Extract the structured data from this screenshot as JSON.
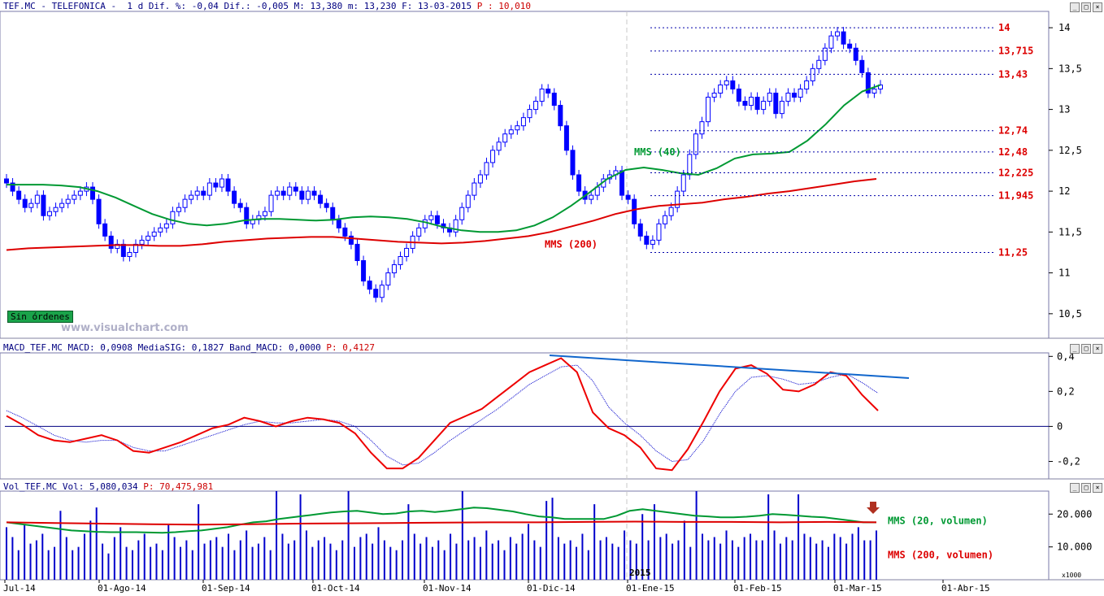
{
  "header": {
    "price": "TEF.MC - TELEFONICA -  1 d Dif. %: -0,04 Dif.: -0,005 M: 13,380 m: 13,230 F: 13-03-2015",
    "price_p": "P : 10,010",
    "macd": "MACD_TEF.MC MACD: 0,0908 MediaSIG: 0,1827 Band_MACD: 0,0000",
    "macd_p": "P: 0,4127",
    "vol": "Vol_TEF.MC Vol: 5,080,034",
    "vol_p": "P: 70,475,981"
  },
  "badge": "Sin órdenes",
  "watermark": "www.visualchart.com",
  "labels": {
    "mms40": "MMS (40)",
    "mms200": "MMS (200)",
    "vol20": "MMS (20, volumen)",
    "vol200": "MMS (200, volumen)",
    "year": "2015",
    "x1000": "x1000"
  },
  "colors": {
    "candle": "#0000ff",
    "mms40": "#009933",
    "mms200": "#dd0000",
    "macd": "#ee0000",
    "signal": "#0000cc",
    "trend": "#1166cc",
    "levels": "#0000aa",
    "level_text": "#dd0000",
    "volume": "#0000cc"
  },
  "chart_data": [
    {
      "type": "candlestick",
      "title": "TEF.MC - TELEFONICA - 1 d",
      "y_ticks": [
        "10,5",
        "11",
        "11,5",
        "12",
        "12,5",
        "13",
        "13,5",
        "14"
      ],
      "ylim": [
        10.2,
        14.2
      ],
      "x_ticks": [
        "Jul-14",
        "01-Ago-14",
        "01-Sep-14",
        "01-Oct-14",
        "01-Nov-14",
        "01-Dic-14",
        "01-Ene-15",
        "01-Feb-15",
        "01-Mar-15",
        "01-Abr-15"
      ],
      "levels": [
        {
          "value": 14,
          "label": "14"
        },
        {
          "value": 13.715,
          "label": "13,715"
        },
        {
          "value": 13.43,
          "label": "13,43"
        },
        {
          "value": 12.74,
          "label": "12,74"
        },
        {
          "value": 12.48,
          "label": "12,48"
        },
        {
          "value": 12.225,
          "label": "12,225"
        },
        {
          "value": 11.945,
          "label": "11,945"
        },
        {
          "value": 11.25,
          "label": "11,25"
        }
      ],
      "close": [
        12.1,
        12.0,
        11.9,
        11.8,
        11.85,
        11.95,
        11.7,
        11.75,
        11.8,
        11.85,
        11.9,
        11.95,
        12.0,
        12.05,
        11.9,
        11.6,
        11.45,
        11.3,
        11.35,
        11.2,
        11.25,
        11.35,
        11.4,
        11.45,
        11.5,
        11.55,
        11.6,
        11.75,
        11.8,
        11.9,
        11.95,
        12.0,
        11.95,
        12.1,
        12.05,
        12.15,
        12.0,
        11.85,
        11.8,
        11.6,
        11.65,
        11.7,
        11.75,
        11.95,
        12.0,
        11.95,
        12.05,
        12.0,
        11.9,
        12.0,
        11.95,
        11.85,
        11.8,
        11.65,
        11.55,
        11.45,
        11.35,
        11.15,
        10.9,
        10.8,
        10.7,
        10.85,
        11.0,
        11.1,
        11.2,
        11.3,
        11.45,
        11.55,
        11.65,
        11.7,
        11.6,
        11.55,
        11.5,
        11.65,
        11.8,
        11.95,
        12.1,
        12.2,
        12.35,
        12.5,
        12.6,
        12.7,
        12.75,
        12.8,
        12.9,
        13.0,
        13.1,
        13.25,
        13.2,
        13.05,
        12.8,
        12.5,
        12.2,
        12.0,
        11.9,
        11.95,
        12.05,
        12.15,
        12.2,
        12.25,
        11.95,
        11.9,
        11.6,
        11.45,
        11.35,
        11.4,
        11.6,
        11.7,
        11.8,
        12.0,
        12.2,
        12.45,
        12.7,
        12.85,
        13.15,
        13.2,
        13.3,
        13.35,
        13.25,
        13.1,
        13.05,
        13.15,
        13.0,
        13.1,
        13.2,
        12.95,
        13.1,
        13.2,
        13.15,
        13.25,
        13.35,
        13.5,
        13.6,
        13.75,
        13.9,
        13.95,
        13.8,
        13.75,
        13.6,
        13.45,
        13.2,
        13.25,
        13.3
      ],
      "mms40": [
        12.08,
        12.08,
        12.08,
        12.07,
        12.05,
        12.0,
        11.92,
        11.82,
        11.72,
        11.65,
        11.6,
        11.58,
        11.6,
        11.64,
        11.66,
        11.66,
        11.65,
        11.64,
        11.65,
        11.68,
        11.69,
        11.68,
        11.66,
        11.62,
        11.56,
        11.52,
        11.5,
        11.5,
        11.52,
        11.58,
        11.68,
        11.82,
        11.98,
        12.15,
        12.26,
        12.29,
        12.26,
        12.22,
        12.2,
        12.28,
        12.4,
        12.45,
        12.46,
        12.48,
        12.62,
        12.82,
        13.05,
        13.22,
        13.3
      ],
      "mms200": [
        11.28,
        11.3,
        11.31,
        11.32,
        11.33,
        11.34,
        11.34,
        11.33,
        11.33,
        11.35,
        11.38,
        11.4,
        11.42,
        11.43,
        11.44,
        11.44,
        11.42,
        11.4,
        11.38,
        11.37,
        11.36,
        11.37,
        11.39,
        11.42,
        11.45,
        11.5,
        11.57,
        11.64,
        11.72,
        11.78,
        11.82,
        11.84,
        11.86,
        11.9,
        11.93,
        11.97,
        12.0,
        12.04,
        12.08,
        12.12,
        12.15
      ]
    },
    {
      "type": "line",
      "title": "MACD_TEF.MC",
      "y_ticks": [
        "-0,2",
        "0",
        "0,2",
        "0,4"
      ],
      "ylim": [
        -0.3,
        0.42
      ],
      "series": [
        {
          "name": "MACD",
          "values": [
            0.06,
            0.01,
            -0.05,
            -0.08,
            -0.09,
            -0.07,
            -0.05,
            -0.08,
            -0.14,
            -0.15,
            -0.12,
            -0.09,
            -0.05,
            -0.01,
            0.01,
            0.05,
            0.03,
            0.0,
            0.03,
            0.05,
            0.04,
            0.02,
            -0.04,
            -0.15,
            -0.24,
            -0.24,
            -0.18,
            -0.08,
            0.02,
            0.06,
            0.1,
            0.17,
            0.24,
            0.31,
            0.35,
            0.39,
            0.31,
            0.08,
            -0.01,
            -0.05,
            -0.12,
            -0.24,
            -0.25,
            -0.13,
            0.03,
            0.2,
            0.33,
            0.35,
            0.3,
            0.21,
            0.2,
            0.24,
            0.31,
            0.29,
            0.18,
            0.09
          ]
        },
        {
          "name": "MediaSIG",
          "values": [
            0.09,
            0.05,
            0.0,
            -0.05,
            -0.08,
            -0.09,
            -0.08,
            -0.08,
            -0.12,
            -0.14,
            -0.14,
            -0.11,
            -0.08,
            -0.05,
            -0.02,
            0.01,
            0.03,
            0.02,
            0.02,
            0.03,
            0.04,
            0.03,
            0.0,
            -0.08,
            -0.17,
            -0.22,
            -0.21,
            -0.15,
            -0.08,
            -0.02,
            0.04,
            0.1,
            0.17,
            0.24,
            0.29,
            0.34,
            0.35,
            0.26,
            0.11,
            0.02,
            -0.05,
            -0.14,
            -0.2,
            -0.19,
            -0.08,
            0.07,
            0.2,
            0.28,
            0.29,
            0.27,
            0.24,
            0.25,
            0.28,
            0.3,
            0.25,
            0.19
          ]
        }
      ]
    },
    {
      "type": "bar",
      "title": "Vol_TEF.MC",
      "y_ticks": [
        "10.000",
        "20.000"
      ],
      "ylim": [
        0,
        27000
      ],
      "volume": [
        16,
        13,
        9,
        17,
        11,
        12,
        14,
        9,
        10,
        21,
        13,
        9,
        10,
        14,
        18,
        22,
        11,
        8,
        13,
        16,
        10,
        9,
        12,
        14,
        10,
        11,
        9,
        17,
        13,
        10,
        12,
        9,
        23,
        11,
        12,
        13,
        10,
        14,
        9,
        12,
        15,
        10,
        11,
        13,
        9,
        27,
        14,
        11,
        12,
        26,
        15,
        10,
        12,
        13,
        11,
        9,
        12,
        27,
        10,
        13,
        14,
        11,
        16,
        12,
        10,
        9,
        12,
        23,
        14,
        11,
        13,
        10,
        12,
        9,
        14,
        11,
        27,
        12,
        13,
        10,
        15,
        11,
        12,
        9,
        13,
        11,
        14,
        17,
        12,
        10,
        24,
        25,
        13,
        11,
        12,
        10,
        14,
        9,
        23,
        12,
        13,
        11,
        10,
        15,
        12,
        11,
        20,
        12,
        23,
        13,
        14,
        11,
        12,
        18,
        10,
        27,
        14,
        12,
        13,
        11,
        15,
        12,
        10,
        13,
        14,
        12,
        12,
        26,
        15,
        11,
        13,
        12,
        26,
        14,
        13,
        11,
        12,
        10,
        14,
        13,
        11,
        14,
        16,
        12,
        12,
        15
      ],
      "vol_mms20": [
        17.5,
        17.0,
        16.5,
        16.0,
        15.5,
        15.0,
        14.8,
        14.6,
        14.5,
        14.5,
        14.5,
        14.4,
        14.3,
        14.5,
        14.8,
        15.0,
        15.5,
        16.0,
        16.8,
        17.5,
        17.8,
        18.5,
        19.0,
        19.5,
        20.0,
        20.5,
        20.8,
        21.0,
        20.5,
        20.0,
        20.2,
        20.8,
        21.0,
        20.6,
        21.0,
        21.5,
        22.0,
        21.8,
        21.3,
        20.8,
        20.0,
        19.3,
        19.0,
        18.5,
        18.5,
        18.5,
        18.5,
        19.5,
        21.0,
        21.5,
        21.0,
        20.5,
        20.0,
        19.5,
        19.3,
        19.0,
        19.0,
        19.2,
        19.5,
        20.0,
        19.8,
        19.5,
        19.2,
        19.0,
        18.5,
        18.0,
        17.5,
        17.5
      ]
    }
  ]
}
